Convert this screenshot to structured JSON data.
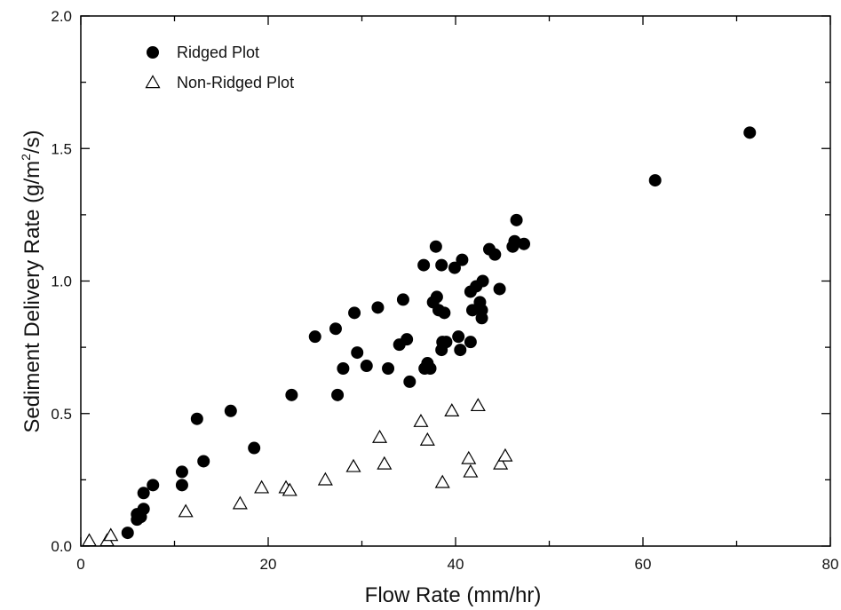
{
  "chart_data": {
    "type": "scatter",
    "title": "",
    "xlabel": "Flow Rate (mm/hr)",
    "ylabel_parts": {
      "pre": "Sediment Delivery Rate (g/m",
      "sup": "2",
      "post": "/s)"
    },
    "xlim": [
      0,
      80
    ],
    "ylim": [
      0,
      2.0
    ],
    "x_ticks": [
      0,
      20,
      40,
      60,
      80
    ],
    "y_ticks": [
      0.0,
      0.5,
      1.0,
      1.5,
      2.0
    ],
    "x_tick_labels": [
      "0",
      "20",
      "40",
      "60",
      "80"
    ],
    "y_tick_labels": [
      "0.0",
      "0.5",
      "1.0",
      "1.5",
      "2.0"
    ],
    "grid": false,
    "legend_position": "top-left",
    "series": [
      {
        "name": "Ridged Plot",
        "marker": "filled-circle",
        "color": "#000000",
        "points": [
          [
            5.0,
            0.05
          ],
          [
            6.0,
            0.1
          ],
          [
            6.0,
            0.12
          ],
          [
            6.4,
            0.11
          ],
          [
            6.7,
            0.14
          ],
          [
            6.7,
            0.2
          ],
          [
            7.7,
            0.23
          ],
          [
            10.8,
            0.23
          ],
          [
            10.8,
            0.28
          ],
          [
            12.4,
            0.48
          ],
          [
            13.1,
            0.32
          ],
          [
            16.0,
            0.51
          ],
          [
            18.5,
            0.37
          ],
          [
            22.5,
            0.57
          ],
          [
            25.0,
            0.79
          ],
          [
            27.2,
            0.82
          ],
          [
            27.4,
            0.57
          ],
          [
            28.0,
            0.67
          ],
          [
            29.2,
            0.88
          ],
          [
            29.5,
            0.73
          ],
          [
            30.5,
            0.68
          ],
          [
            31.7,
            0.9
          ],
          [
            32.8,
            0.67
          ],
          [
            34.0,
            0.76
          ],
          [
            34.4,
            0.93
          ],
          [
            34.8,
            0.78
          ],
          [
            35.1,
            0.62
          ],
          [
            36.6,
            1.06
          ],
          [
            36.7,
            0.67
          ],
          [
            37.0,
            0.69
          ],
          [
            37.3,
            0.67
          ],
          [
            37.6,
            0.92
          ],
          [
            37.9,
            1.13
          ],
          [
            38.0,
            0.94
          ],
          [
            38.2,
            0.89
          ],
          [
            38.5,
            1.06
          ],
          [
            38.5,
            0.74
          ],
          [
            38.6,
            0.77
          ],
          [
            38.8,
            0.88
          ],
          [
            39.0,
            0.77
          ],
          [
            39.9,
            1.05
          ],
          [
            40.3,
            0.79
          ],
          [
            40.5,
            0.74
          ],
          [
            40.7,
            1.08
          ],
          [
            41.6,
            0.96
          ],
          [
            41.6,
            0.77
          ],
          [
            41.8,
            0.89
          ],
          [
            42.2,
            0.98
          ],
          [
            42.6,
            0.92
          ],
          [
            42.8,
            0.86
          ],
          [
            42.8,
            0.89
          ],
          [
            42.9,
            1.0
          ],
          [
            43.6,
            1.12
          ],
          [
            44.2,
            1.1
          ],
          [
            44.7,
            0.97
          ],
          [
            46.1,
            1.13
          ],
          [
            46.3,
            1.15
          ],
          [
            46.5,
            1.23
          ],
          [
            47.3,
            1.14
          ],
          [
            61.3,
            1.38
          ],
          [
            71.4,
            1.56
          ]
        ]
      },
      {
        "name": "Non-Ridged Plot",
        "marker": "open-triangle",
        "color": "#000000",
        "points": [
          [
            0.9,
            0.02
          ],
          [
            2.8,
            0.02
          ],
          [
            3.2,
            0.04
          ],
          [
            11.2,
            0.13
          ],
          [
            17.0,
            0.16
          ],
          [
            19.3,
            0.22
          ],
          [
            21.9,
            0.22
          ],
          [
            22.3,
            0.21
          ],
          [
            26.1,
            0.25
          ],
          [
            29.1,
            0.3
          ],
          [
            31.9,
            0.41
          ],
          [
            32.4,
            0.31
          ],
          [
            36.3,
            0.47
          ],
          [
            37.0,
            0.4
          ],
          [
            38.6,
            0.24
          ],
          [
            39.6,
            0.51
          ],
          [
            41.4,
            0.33
          ],
          [
            41.6,
            0.28
          ],
          [
            42.4,
            0.53
          ],
          [
            44.8,
            0.31
          ],
          [
            45.3,
            0.34
          ]
        ]
      }
    ]
  }
}
